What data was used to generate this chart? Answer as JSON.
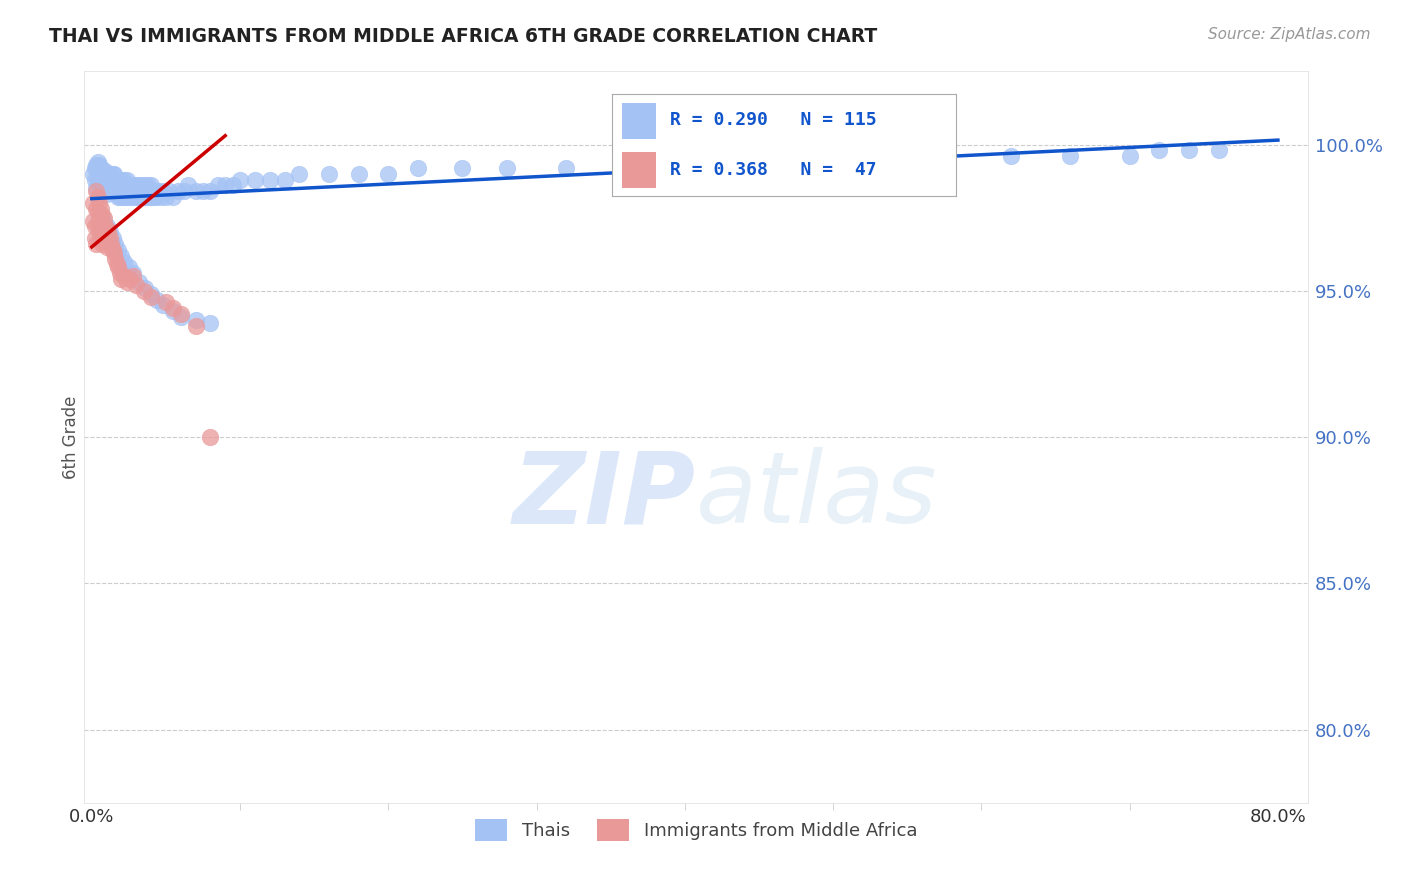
{
  "title": "THAI VS IMMIGRANTS FROM MIDDLE AFRICA 6TH GRADE CORRELATION CHART",
  "source": "Source: ZipAtlas.com",
  "ylabel": "6th Grade",
  "ytick_labels": [
    "80.0%",
    "85.0%",
    "90.0%",
    "95.0%",
    "100.0%"
  ],
  "ytick_values": [
    0.8,
    0.85,
    0.9,
    0.95,
    1.0
  ],
  "xlim": [
    -0.005,
    0.82
  ],
  "ylim": [
    0.775,
    1.025
  ],
  "legend_blue_line1": "R = 0.290   N = 115",
  "legend_pink_line2": "R = 0.368   N =  47",
  "legend_label_blue": "Thais",
  "legend_label_pink": "Immigrants from Middle Africa",
  "blue_color": "#a4c2f4",
  "pink_color": "#ea9999",
  "blue_line_color": "#1155cc",
  "pink_line_color": "#cc0000",
  "legend_text_color": "#1155cc",
  "right_tick_color": "#4472c4",
  "blue_scatter_x": [
    0.001,
    0.002,
    0.002,
    0.003,
    0.003,
    0.004,
    0.004,
    0.005,
    0.005,
    0.006,
    0.006,
    0.007,
    0.007,
    0.008,
    0.008,
    0.009,
    0.009,
    0.01,
    0.01,
    0.011,
    0.011,
    0.012,
    0.012,
    0.013,
    0.014,
    0.015,
    0.015,
    0.016,
    0.017,
    0.018,
    0.018,
    0.019,
    0.02,
    0.021,
    0.022,
    0.023,
    0.024,
    0.025,
    0.026,
    0.027,
    0.028,
    0.029,
    0.03,
    0.031,
    0.032,
    0.033,
    0.034,
    0.035,
    0.036,
    0.037,
    0.038,
    0.039,
    0.04,
    0.041,
    0.042,
    0.043,
    0.045,
    0.047,
    0.048,
    0.05,
    0.052,
    0.055,
    0.058,
    0.062,
    0.065,
    0.07,
    0.075,
    0.08,
    0.085,
    0.09,
    0.095,
    0.1,
    0.11,
    0.12,
    0.13,
    0.14,
    0.16,
    0.18,
    0.2,
    0.22,
    0.25,
    0.28,
    0.32,
    0.36,
    0.4,
    0.44,
    0.5,
    0.56,
    0.62,
    0.66,
    0.7,
    0.72,
    0.74,
    0.76,
    0.48,
    0.52,
    0.008,
    0.01,
    0.012,
    0.014,
    0.016,
    0.018,
    0.02,
    0.022,
    0.025,
    0.028,
    0.032,
    0.036,
    0.04,
    0.044,
    0.048,
    0.055,
    0.06,
    0.07,
    0.08
  ],
  "blue_scatter_y": [
    0.99,
    0.988,
    0.992,
    0.985,
    0.993,
    0.988,
    0.994,
    0.987,
    0.993,
    0.986,
    0.992,
    0.985,
    0.991,
    0.984,
    0.99,
    0.984,
    0.991,
    0.983,
    0.99,
    0.984,
    0.99,
    0.984,
    0.99,
    0.984,
    0.99,
    0.984,
    0.99,
    0.984,
    0.983,
    0.982,
    0.988,
    0.982,
    0.988,
    0.982,
    0.988,
    0.982,
    0.988,
    0.982,
    0.986,
    0.982,
    0.986,
    0.982,
    0.986,
    0.982,
    0.986,
    0.982,
    0.986,
    0.982,
    0.986,
    0.982,
    0.986,
    0.982,
    0.986,
    0.982,
    0.984,
    0.982,
    0.984,
    0.982,
    0.984,
    0.982,
    0.984,
    0.982,
    0.984,
    0.984,
    0.986,
    0.984,
    0.984,
    0.984,
    0.986,
    0.986,
    0.986,
    0.988,
    0.988,
    0.988,
    0.988,
    0.99,
    0.99,
    0.99,
    0.99,
    0.992,
    0.992,
    0.992,
    0.992,
    0.994,
    0.994,
    0.994,
    0.994,
    0.996,
    0.996,
    0.996,
    0.996,
    0.998,
    0.998,
    0.998,
    0.994,
    0.994,
    0.974,
    0.972,
    0.97,
    0.968,
    0.966,
    0.964,
    0.962,
    0.96,
    0.958,
    0.956,
    0.953,
    0.951,
    0.949,
    0.947,
    0.945,
    0.943,
    0.941,
    0.94,
    0.939
  ],
  "pink_scatter_x": [
    0.001,
    0.001,
    0.002,
    0.002,
    0.003,
    0.003,
    0.003,
    0.004,
    0.004,
    0.004,
    0.005,
    0.005,
    0.005,
    0.006,
    0.006,
    0.006,
    0.007,
    0.007,
    0.007,
    0.008,
    0.008,
    0.009,
    0.009,
    0.01,
    0.01,
    0.011,
    0.012,
    0.013,
    0.014,
    0.015,
    0.016,
    0.017,
    0.018,
    0.019,
    0.02,
    0.022,
    0.024,
    0.026,
    0.028,
    0.03,
    0.035,
    0.04,
    0.05,
    0.055,
    0.06,
    0.07,
    0.08
  ],
  "pink_scatter_y": [
    0.98,
    0.974,
    0.972,
    0.968,
    0.984,
    0.978,
    0.966,
    0.982,
    0.977,
    0.972,
    0.98,
    0.975,
    0.97,
    0.978,
    0.973,
    0.968,
    0.976,
    0.971,
    0.966,
    0.975,
    0.969,
    0.972,
    0.967,
    0.971,
    0.965,
    0.97,
    0.968,
    0.966,
    0.964,
    0.963,
    0.961,
    0.959,
    0.958,
    0.956,
    0.954,
    0.955,
    0.953,
    0.954,
    0.955,
    0.952,
    0.95,
    0.948,
    0.946,
    0.944,
    0.942,
    0.938,
    0.9
  ],
  "blue_trendline_x": [
    0.0,
    0.8
  ],
  "blue_trendline_y": [
    0.9815,
    1.0015
  ],
  "pink_trendline_x": [
    0.0,
    0.09
  ],
  "pink_trendline_y": [
    0.965,
    1.003
  ],
  "watermark_zip": "ZIP",
  "watermark_atlas": "atlas",
  "grid_color": "#cccccc",
  "grid_style": "--",
  "background_color": "#ffffff"
}
